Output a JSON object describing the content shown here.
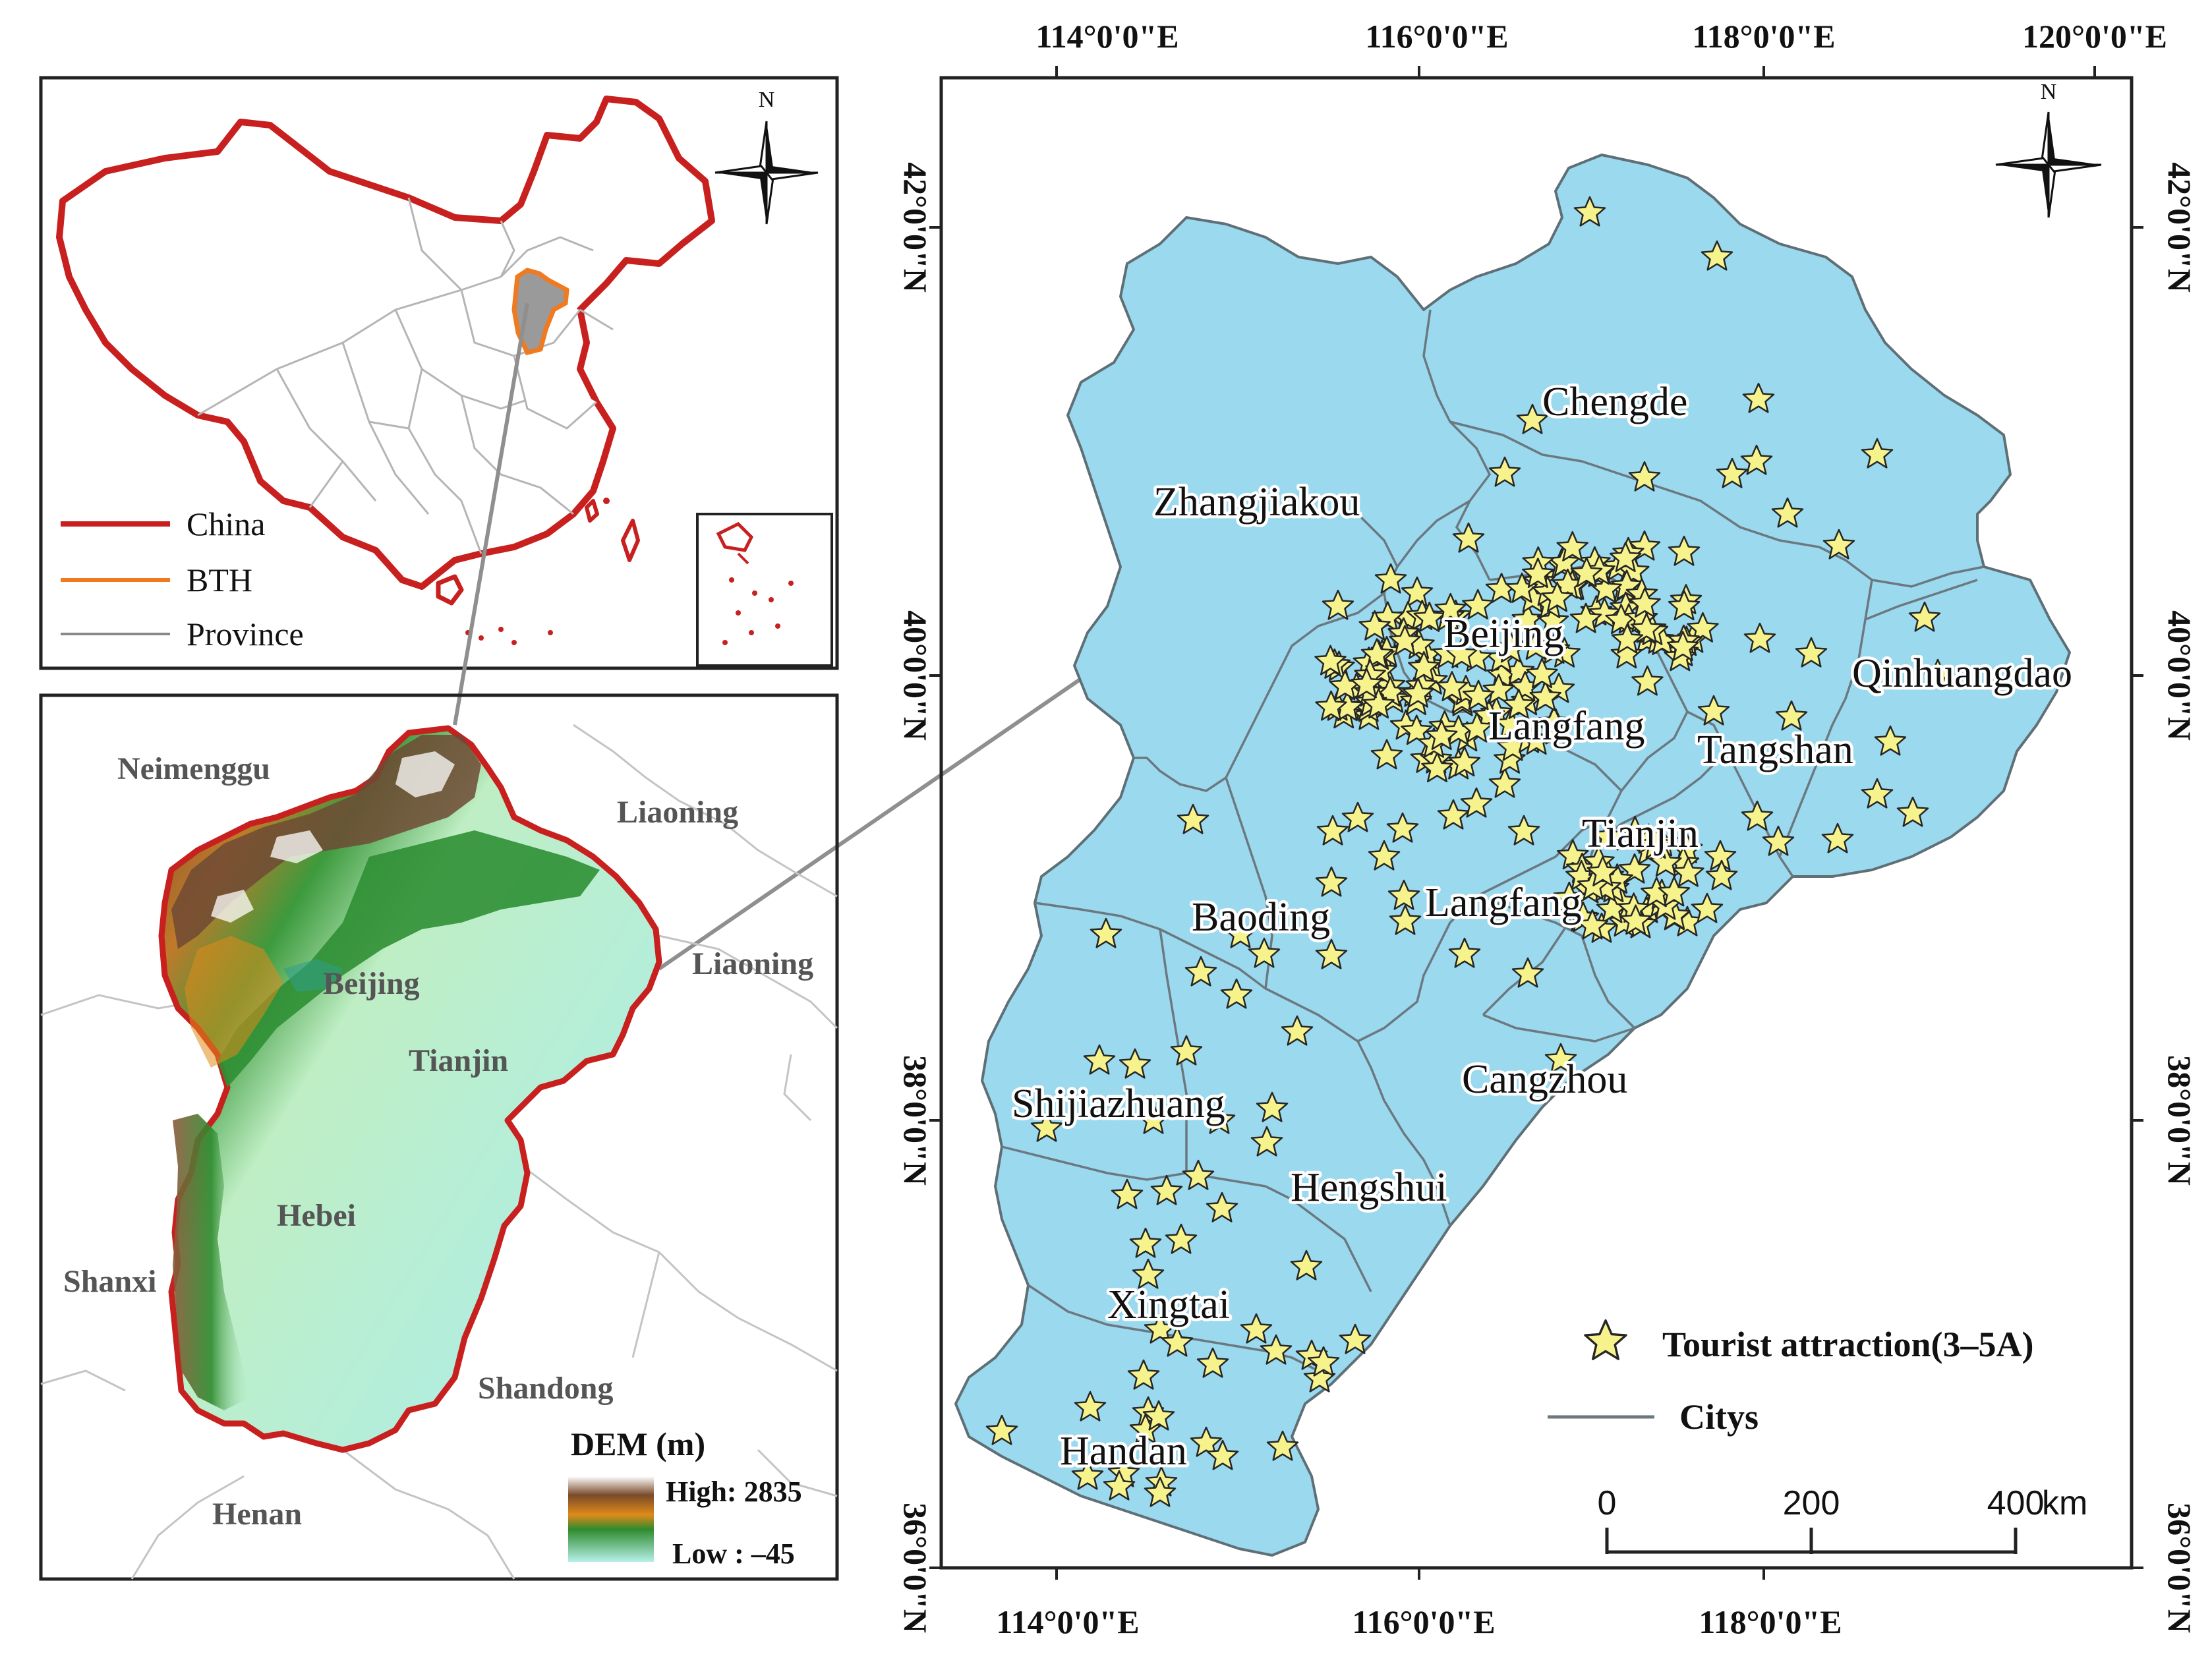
{
  "inset_china": {
    "legend": [
      {
        "label": "China",
        "color": "#c8201f"
      },
      {
        "label": "BTH",
        "color": "#f07a1f"
      },
      {
        "label": "Province",
        "color": "#888888"
      }
    ],
    "north": "N"
  },
  "dem_map": {
    "regions": [
      "Neimenggu",
      "Liaoning",
      "Liaoning",
      "Beijing",
      "Tianjin",
      "Hebei",
      "Shanxi",
      "Shandong",
      "Henan"
    ],
    "dem_title": "DEM (m)",
    "dem_high": "High: 2835",
    "dem_low": "Low : –45",
    "colors": {
      "high": "#ffffff",
      "mid_high": "#7a4a2a",
      "mid": "#e08a1a",
      "green": "#2e8b2e",
      "low": "#b7f0e8"
    }
  },
  "main_map": {
    "top_ticks": [
      "114°0'0\"E",
      "116°0'0\"E",
      "118°0'0\"E",
      "120°0'0\"E"
    ],
    "bottom_ticks": [
      "114°0'0\"E",
      "116°0'0\"E",
      "118°0'0\"E"
    ],
    "left_ticks": [
      "42°0'0\"N",
      "40°0'0\"N",
      "38°0'0\"N",
      "36°0'0\"N"
    ],
    "right_ticks": [
      "42°0'0\"N",
      "40°0'0\"N",
      "38°0'0\"N",
      "36°0'0\"N"
    ],
    "cities": [
      "Chengde",
      "Zhangjiakou",
      "Beijing",
      "Langfang",
      "Tangshan",
      "Qinhuangdao",
      "Tianjin",
      "Langfang",
      "Baoding",
      "Shijiazhuang",
      "Cangzhou",
      "Hengshui",
      "Xingtai",
      "Handan"
    ],
    "legend": {
      "star": "Tourist attraction(3–5A)",
      "line": "Citys"
    },
    "scale": {
      "labels": [
        "0",
        "200",
        "400"
      ],
      "unit": "km"
    },
    "north": "N",
    "fill_color": "#9bd9ee",
    "star_color": "#f7f38c"
  }
}
